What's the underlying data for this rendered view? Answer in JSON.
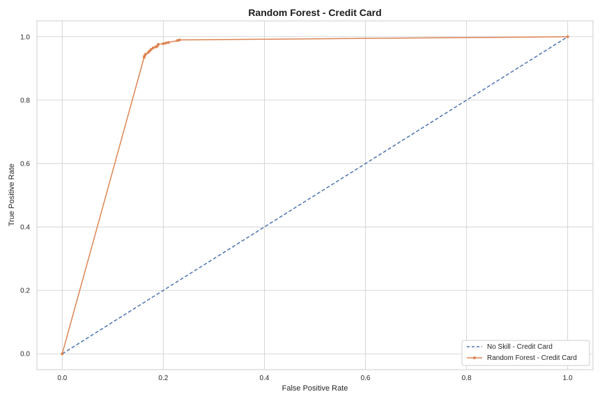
{
  "chart_data": {
    "type": "line",
    "title": "Random Forest - Credit Card",
    "xlabel": "False Positive Rate",
    "ylabel": "True Positive Rate",
    "xlim": [
      -0.05,
      1.05
    ],
    "ylim": [
      -0.05,
      1.05
    ],
    "xticks": [
      0.0,
      0.2,
      0.4,
      0.6,
      0.8,
      1.0
    ],
    "yticks": [
      0.0,
      0.2,
      0.4,
      0.6,
      0.8,
      1.0
    ],
    "xtick_labels": [
      "0.0",
      "0.2",
      "0.4",
      "0.6",
      "0.8",
      "1.0"
    ],
    "ytick_labels": [
      "0.0",
      "0.2",
      "0.4",
      "0.6",
      "0.8",
      "1.0"
    ],
    "grid": true,
    "legend_position": "bottom-right",
    "series": [
      {
        "name": "No Skill - Credit Card",
        "style": "dashed",
        "color": "#4c72b0",
        "marker": "none",
        "x": [
          0.0,
          1.0
        ],
        "y": [
          0.0,
          1.0
        ]
      },
      {
        "name": "Random Forest - Credit Card",
        "style": "solid",
        "color": "#dd8452",
        "marker": "dot",
        "x": [
          0.0,
          0.162,
          0.163,
          0.165,
          0.17,
          0.173,
          0.176,
          0.18,
          0.185,
          0.188,
          0.19,
          0.2,
          0.205,
          0.21,
          0.228,
          0.232,
          1.0
        ],
        "y": [
          0.0,
          0.935,
          0.94,
          0.945,
          0.95,
          0.955,
          0.96,
          0.965,
          0.968,
          0.97,
          0.976,
          0.978,
          0.98,
          0.982,
          0.988,
          0.99,
          1.0
        ]
      }
    ]
  }
}
